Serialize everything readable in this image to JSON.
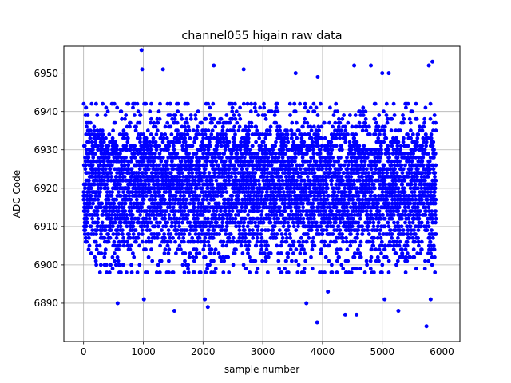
{
  "chart_data": {
    "type": "scatter",
    "title": "channel055 higain raw data",
    "xlabel": "sample number",
    "ylabel": "ADC Code",
    "xlim": [
      -330,
      6300
    ],
    "ylim": [
      6880,
      6957
    ],
    "xticks": [
      0,
      1000,
      2000,
      3000,
      4000,
      5000,
      6000
    ],
    "yticks": [
      6890,
      6900,
      6910,
      6920,
      6930,
      6940,
      6950
    ],
    "xtick_labels": [
      "0",
      "1000",
      "2000",
      "3000",
      "4000",
      "5000",
      "6000"
    ],
    "ytick_labels": [
      "6890",
      "6900",
      "6910",
      "6920",
      "6930",
      "6940",
      "6950"
    ],
    "grid": true,
    "series": [
      {
        "marker_color": "#0000ff",
        "x_range": [
          0,
          5900
        ],
        "n_points": 5900,
        "central_value": 6920,
        "typical_spread": [
          6905,
          6935
        ],
        "outliers": [
          {
            "x": 970,
            "y": 6956
          },
          {
            "x": 980,
            "y": 6951
          },
          {
            "x": 1330,
            "y": 6951
          },
          {
            "x": 2180,
            "y": 6952
          },
          {
            "x": 2680,
            "y": 6951
          },
          {
            "x": 3550,
            "y": 6950
          },
          {
            "x": 3920,
            "y": 6949
          },
          {
            "x": 4530,
            "y": 6952
          },
          {
            "x": 4810,
            "y": 6952
          },
          {
            "x": 5000,
            "y": 6950
          },
          {
            "x": 5110,
            "y": 6950
          },
          {
            "x": 5780,
            "y": 6952
          },
          {
            "x": 5840,
            "y": 6953
          },
          {
            "x": 570,
            "y": 6890
          },
          {
            "x": 1010,
            "y": 6891
          },
          {
            "x": 1520,
            "y": 6888
          },
          {
            "x": 2030,
            "y": 6891
          },
          {
            "x": 2080,
            "y": 6889
          },
          {
            "x": 3730,
            "y": 6890
          },
          {
            "x": 3910,
            "y": 6885
          },
          {
            "x": 4090,
            "y": 6893
          },
          {
            "x": 4380,
            "y": 6887
          },
          {
            "x": 4570,
            "y": 6887
          },
          {
            "x": 5040,
            "y": 6891
          },
          {
            "x": 5270,
            "y": 6888
          },
          {
            "x": 5740,
            "y": 6884
          },
          {
            "x": 5810,
            "y": 6891
          }
        ]
      }
    ]
  }
}
